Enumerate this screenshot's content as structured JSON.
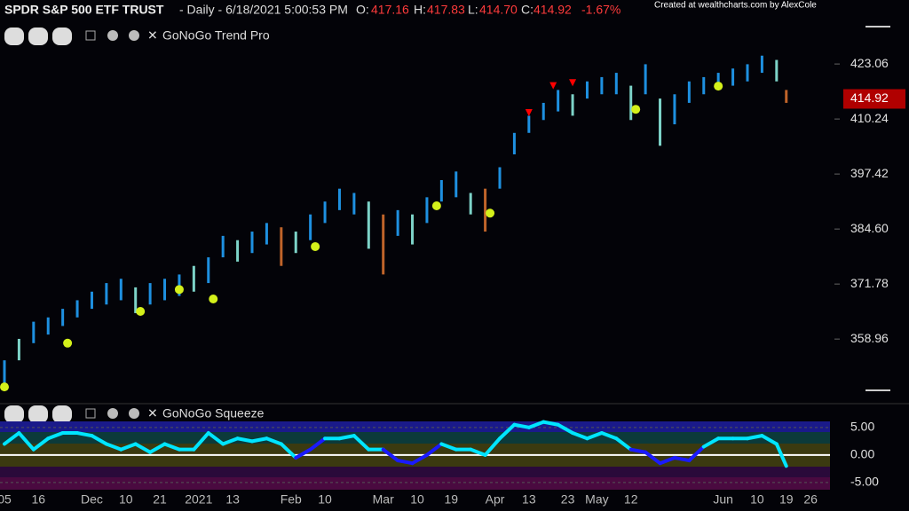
{
  "header": {
    "symbol": "SPDR S&P 500 ETF TRUST",
    "info": "- Daily - 6/18/2021 5:00:53 PM",
    "o_label": "O:",
    "open": "417.16",
    "h_label": "H:",
    "high": "417.83",
    "l_label": "L:",
    "low": "414.70",
    "c_label": "C:",
    "close": "414.92",
    "change": "-1.67%",
    "credit": "Created at wealthcharts.com by AlexCole"
  },
  "chart_data": [
    {
      "type": "ohlc",
      "title": "GoNoGo Trend Pro",
      "x": [
        0,
        3,
        6,
        9,
        12,
        15,
        18,
        21,
        24,
        27,
        30,
        33,
        36,
        39,
        42,
        45,
        48,
        51,
        54,
        57,
        60,
        63,
        66,
        69,
        72,
        75,
        78,
        81,
        84,
        87,
        90,
        93,
        96,
        99,
        102,
        105,
        108,
        111,
        114,
        117,
        120,
        123,
        126,
        129,
        132,
        135,
        138,
        141,
        144,
        147,
        150,
        153,
        156,
        159,
        161
      ],
      "low": [
        347,
        354,
        358,
        360,
        362,
        364,
        366,
        367,
        368,
        365,
        367,
        368,
        369,
        370,
        372,
        378,
        377,
        379,
        381,
        376,
        379,
        382,
        386,
        389,
        388,
        380,
        374,
        383,
        381,
        386,
        391,
        392,
        388,
        384,
        394,
        402,
        407,
        410,
        412,
        411,
        415,
        416,
        416,
        410,
        416,
        404,
        409,
        414,
        416,
        417,
        418,
        419,
        421,
        419,
        414
      ],
      "high": [
        354,
        359,
        363,
        364,
        366,
        368,
        370,
        372,
        373,
        371,
        372,
        373,
        374,
        376,
        378,
        383,
        382,
        384,
        386,
        385,
        384,
        388,
        391,
        394,
        393,
        391,
        388,
        389,
        388,
        392,
        396,
        398,
        393,
        394,
        399,
        407,
        411,
        414,
        417,
        416,
        419,
        420,
        421,
        418,
        423,
        415,
        416,
        419,
        420,
        421,
        422,
        423,
        425,
        424,
        417
      ],
      "colors": [
        "#1e90e0",
        "#7dd3c8",
        "#1e90e0",
        "#1e90e0",
        "#1e90e0",
        "#1e90e0",
        "#1e90e0",
        "#1e90e0",
        "#1e90e0",
        "#7dd3c8",
        "#1e90e0",
        "#1e90e0",
        "#1e90e0",
        "#7dd3c8",
        "#1e90e0",
        "#1e90e0",
        "#7dd3c8",
        "#1e90e0",
        "#1e90e0",
        "#c0642a",
        "#7dd3c8",
        "#1e90e0",
        "#1e90e0",
        "#1e90e0",
        "#1e90e0",
        "#7dd3c8",
        "#c0642a",
        "#1e90e0",
        "#7dd3c8",
        "#1e90e0",
        "#1e90e0",
        "#1e90e0",
        "#7dd3c8",
        "#c0642a",
        "#1e90e0",
        "#1e90e0",
        "#1e90e0",
        "#1e90e0",
        "#1e90e0",
        "#7dd3c8",
        "#1e90e0",
        "#1e90e0",
        "#1e90e0",
        "#7dd3c8",
        "#1e90e0",
        "#7dd3c8",
        "#1e90e0",
        "#1e90e0",
        "#1e90e0",
        "#1e90e0",
        "#1e90e0",
        "#1e90e0",
        "#1e90e0",
        "#7dd3c8",
        "#c0642a"
      ],
      "dots_x": [
        0,
        13,
        28,
        36,
        43,
        64,
        89,
        100,
        130,
        147
      ],
      "dots_y": [
        347.8,
        358,
        365.4,
        370.5,
        368.3,
        380.5,
        390,
        388.3,
        412.5,
        417.9
      ],
      "dot_color": "#d4f01a",
      "tri_x": [
        108,
        113,
        117
      ],
      "tri_y": [
        411.7,
        418,
        418.7
      ],
      "tri_color": "#ff0000",
      "last_price": 414.92,
      "xlim": [
        0,
        170
      ],
      "ylim": [
        343.9,
        432.8
      ],
      "yticks": [
        423.06,
        410.24,
        397.42,
        {
          "value": 384.6,
          "label": "384.60"
        },
        371.78,
        358.96
      ]
    },
    {
      "type": "line",
      "title": "GoNoGo Squeeze",
      "x": [
        0,
        3,
        6,
        9,
        12,
        15,
        18,
        21,
        24,
        27,
        30,
        33,
        36,
        39,
        42,
        45,
        48,
        51,
        54,
        57,
        60,
        63,
        66,
        69,
        72,
        75,
        78,
        81,
        84,
        87,
        90,
        93,
        96,
        99,
        102,
        105,
        108,
        111,
        114,
        117,
        120,
        123,
        126,
        129,
        132,
        135,
        138,
        141,
        144,
        147,
        150,
        153,
        156,
        159,
        161
      ],
      "values": [
        2,
        4,
        1,
        3,
        4,
        4,
        3.5,
        2,
        1,
        2,
        0.5,
        2,
        1,
        1,
        4,
        2,
        3,
        2.5,
        3,
        2,
        -0.5,
        1,
        3,
        3,
        3.5,
        1,
        1,
        -1,
        -1.5,
        0,
        2,
        1,
        1,
        0,
        3,
        5.5,
        5,
        6,
        5.5,
        4,
        3,
        4,
        3,
        1,
        0.5,
        -1.5,
        -0.5,
        -1,
        1.5,
        3,
        3,
        3,
        3.5,
        2,
        -2
      ],
      "colors": [
        "#00e5ff",
        "#00e5ff",
        "#00e5ff",
        "#00e5ff",
        "#00e5ff",
        "#00e5ff",
        "#00e5ff",
        "#00e5ff",
        "#00e5ff",
        "#00e5ff",
        "#00e5ff",
        "#00e5ff",
        "#00e5ff",
        "#00e5ff",
        "#00e5ff",
        "#00e5ff",
        "#00e5ff",
        "#00e5ff",
        "#00e5ff",
        "#00e5ff",
        "#1a1aff",
        "#1a1aff",
        "#00e5ff",
        "#00e5ff",
        "#00e5ff",
        "#00e5ff",
        "#1a1aff",
        "#1a1aff",
        "#1a1aff",
        "#1a1aff",
        "#00e5ff",
        "#00e5ff",
        "#00e5ff",
        "#00e5ff",
        "#00e5ff",
        "#00e5ff",
        "#00e5ff",
        "#00e5ff",
        "#00e5ff",
        "#00e5ff",
        "#00e5ff",
        "#00e5ff",
        "#00e5ff",
        "#1a1aff",
        "#1a1aff",
        "#1a1aff",
        "#1a1aff",
        "#1a1aff",
        "#00e5ff",
        "#00e5ff",
        "#00e5ff",
        "#00e5ff",
        "#00e5ff",
        "#00e5ff",
        "#00e5ff"
      ],
      "xlim": [
        0,
        170
      ],
      "ylim": [
        -6.3,
        6.1
      ],
      "yticks": [
        {
          "value": 5,
          "label": "5.00"
        },
        {
          "value": 0,
          "label": "0.00"
        },
        {
          "value": -5,
          "label": "-5.00"
        }
      ],
      "xticks": [
        {
          "value": 0,
          "label": "05"
        },
        {
          "value": 7,
          "label": "16"
        },
        {
          "value": 18,
          "label": "Dec"
        },
        {
          "value": 25,
          "label": "10"
        },
        {
          "value": 32,
          "label": "21"
        },
        {
          "value": 40,
          "label": "2021"
        },
        {
          "value": 47,
          "label": "13"
        },
        {
          "value": 59,
          "label": "Feb"
        },
        {
          "value": 66,
          "label": "10"
        },
        {
          "value": 78,
          "label": "Mar"
        },
        {
          "value": 85,
          "label": "10"
        },
        {
          "value": 92,
          "label": "19"
        },
        {
          "value": 101,
          "label": "Apr"
        },
        {
          "value": 108,
          "label": "13"
        },
        {
          "value": 116,
          "label": "23"
        },
        {
          "value": 122,
          "label": "May"
        },
        {
          "value": 129,
          "label": "12"
        },
        {
          "value": 148,
          "label": "Jun"
        },
        {
          "value": 155,
          "label": "10"
        },
        {
          "value": 161,
          "label": "19"
        },
        {
          "value": 166,
          "label": "26"
        }
      ]
    }
  ]
}
